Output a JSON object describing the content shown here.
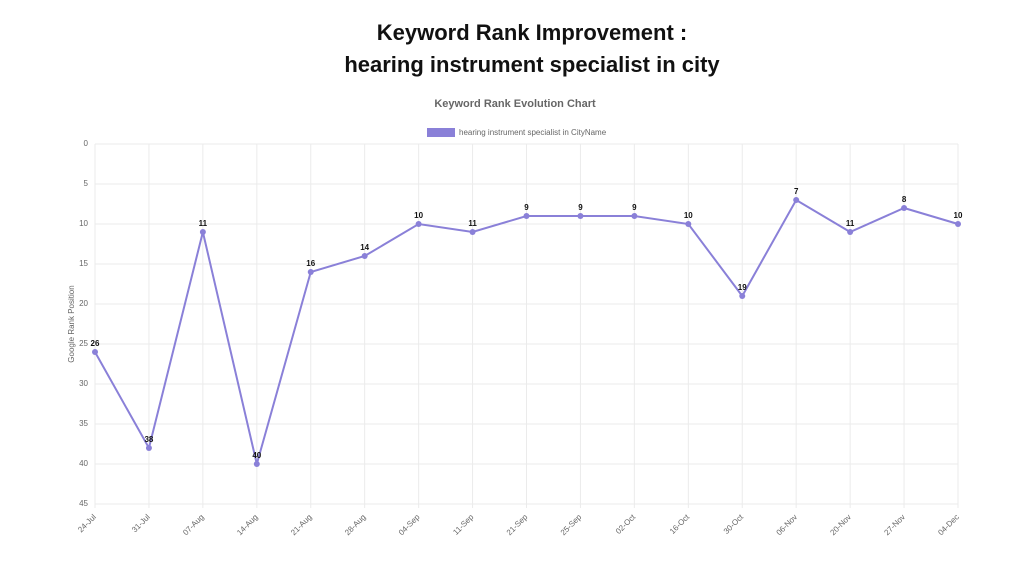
{
  "headline": [
    "Keyword Rank Improvement :",
    "hearing instrument specialist in city"
  ],
  "chart_data": {
    "type": "line",
    "title": "Keyword Rank Evolution Chart",
    "y_label": "Google Rank Position",
    "categories": [
      "24-Jul",
      "31-Jul",
      "07-Aug",
      "14-Aug",
      "21-Aug",
      "28-Aug",
      "04-Sep",
      "11-Sep",
      "21-Sep",
      "25-Sep",
      "02-Oct",
      "16-Oct",
      "30-Oct",
      "06-Nov",
      "20-Nov",
      "27-Nov",
      "04-Dec"
    ],
    "series": [
      {
        "name": "hearing instrument specialist in CityName",
        "color": "#8a80d8",
        "values": [
          26,
          38,
          11,
          40,
          16,
          14,
          10,
          11,
          9,
          9,
          9,
          10,
          19,
          7,
          11,
          8,
          10
        ]
      }
    ],
    "ylim": [
      0,
      45
    ],
    "yticks": [
      0,
      5,
      10,
      15,
      20,
      25,
      30,
      35,
      40,
      45
    ],
    "y_reverse": true,
    "grid": true,
    "legend": "top",
    "data_labels": true
  }
}
